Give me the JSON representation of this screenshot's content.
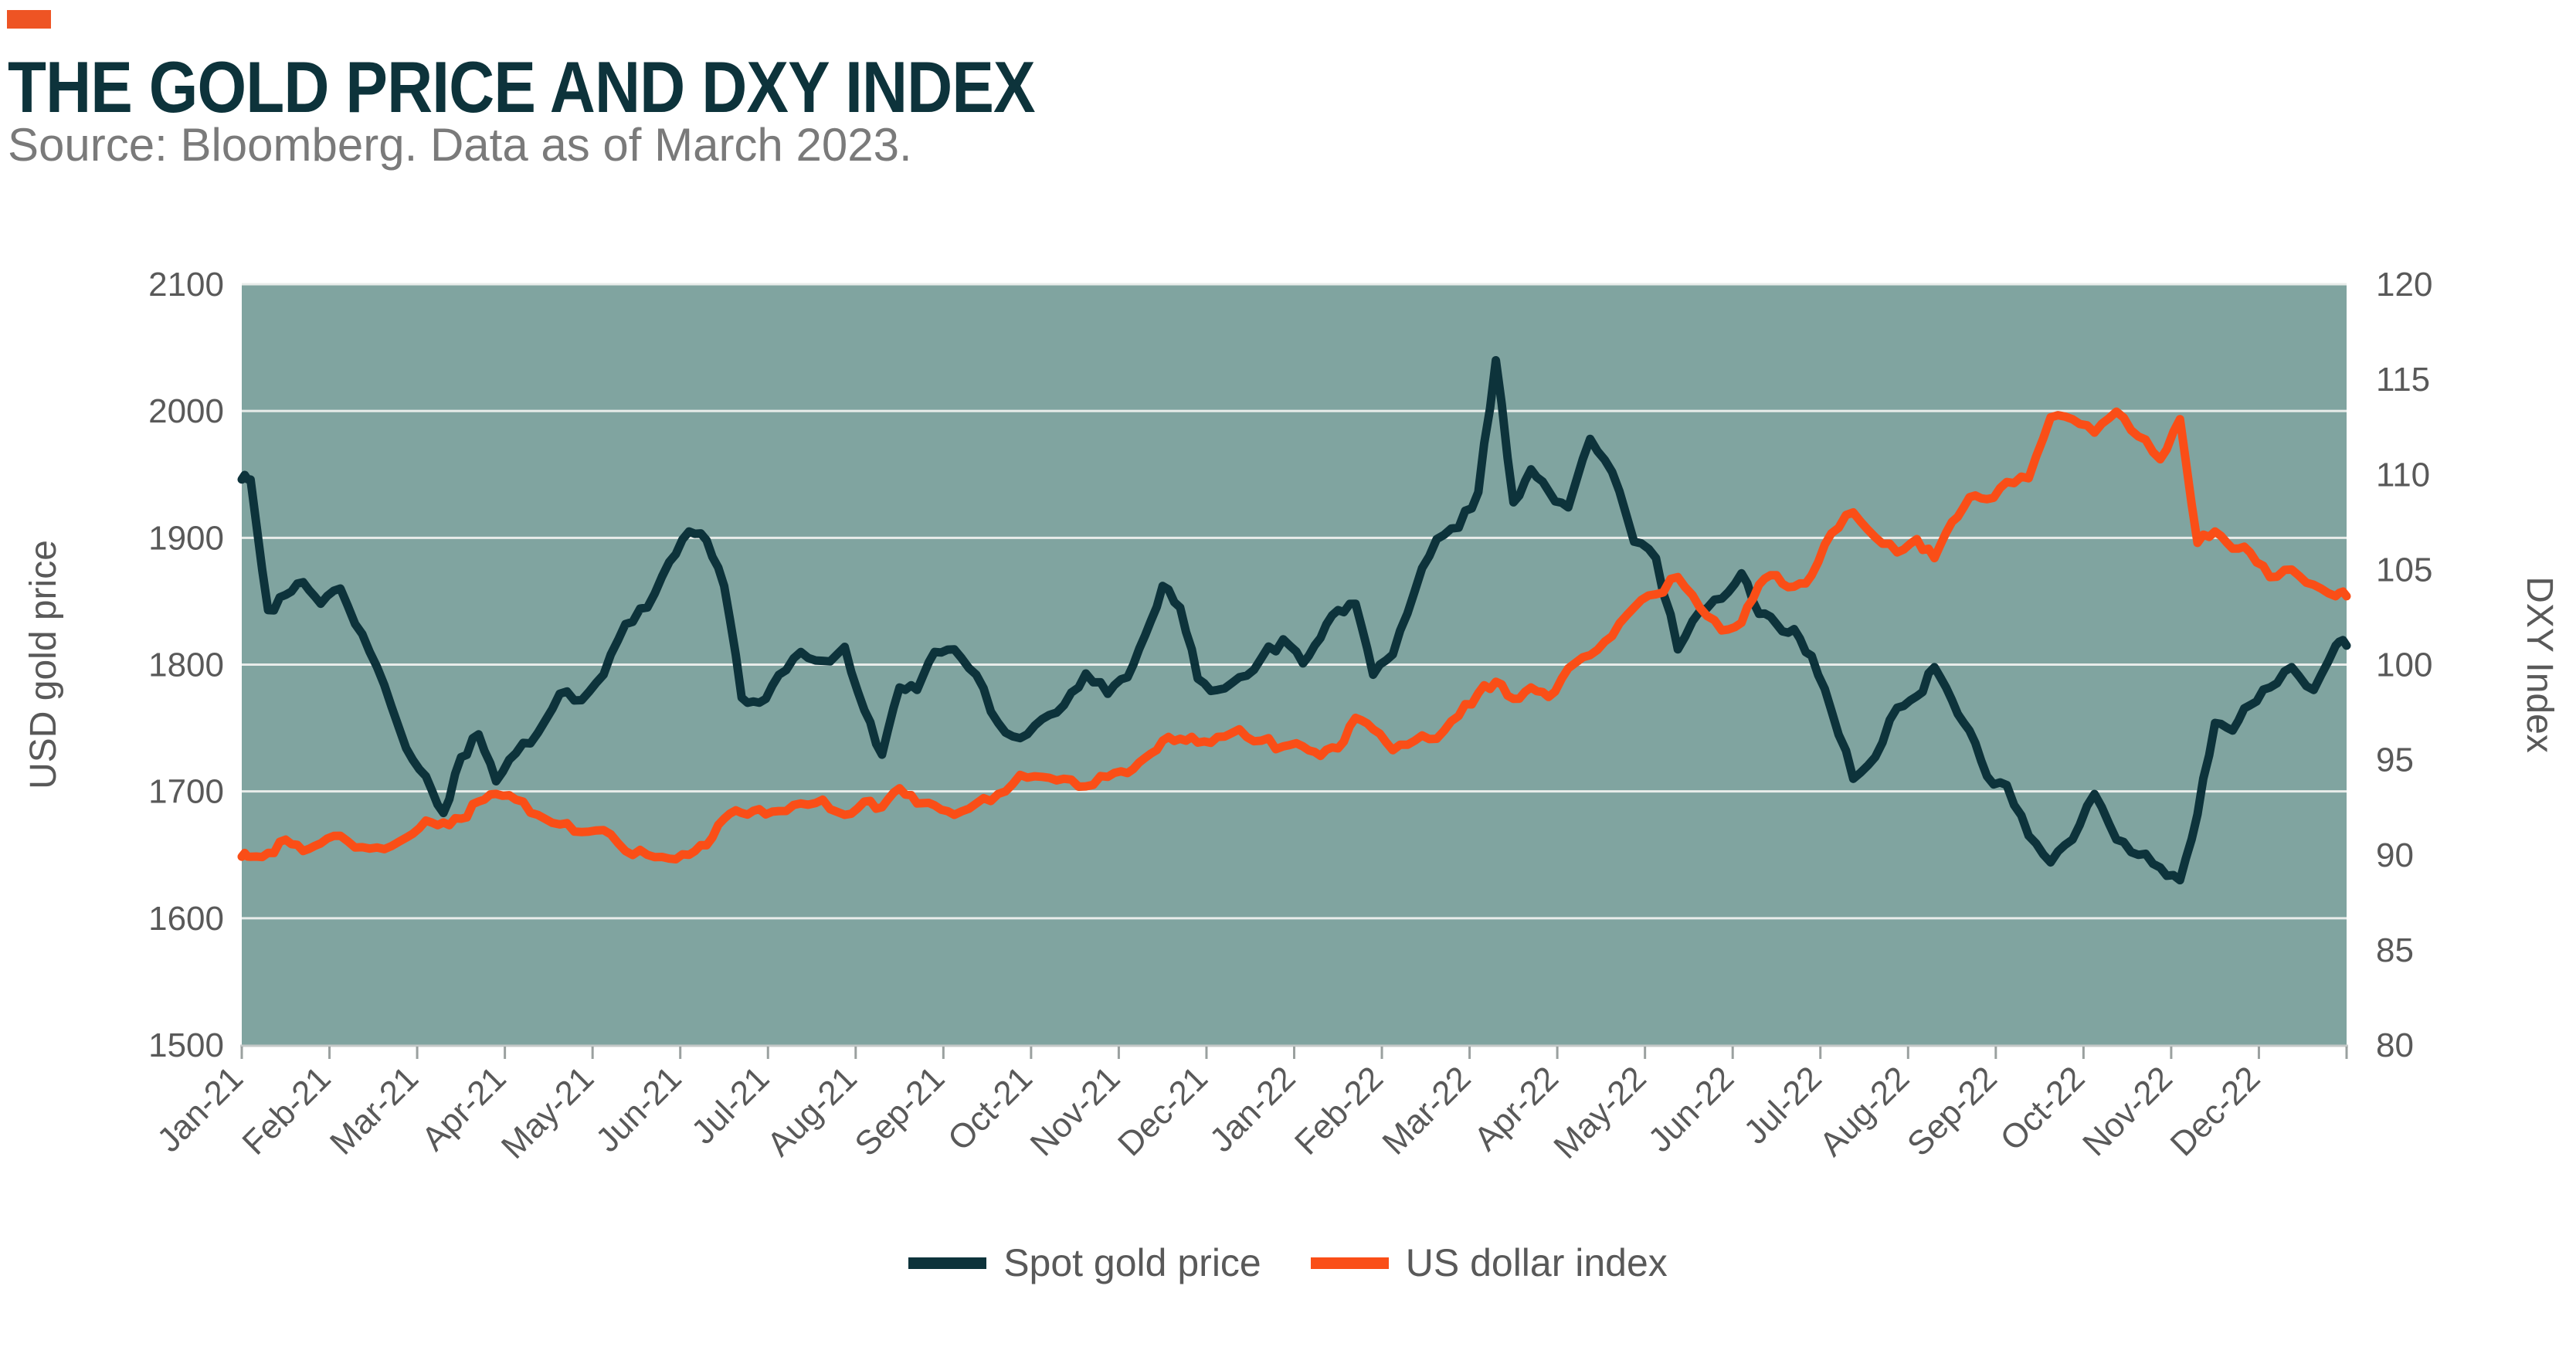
{
  "header": {
    "title": "THE GOLD PRICE AND DXY INDEX",
    "source": "Source: Bloomberg. Data as of March 2023.",
    "accent_color": "#ee5424",
    "title_color": "#0d333b"
  },
  "chart_data": {
    "type": "line",
    "title": "THE GOLD PRICE AND DXY INDEX",
    "source": "Source: Bloomberg. Data as of March 2023.",
    "plot_bg_color": "#80a4a0",
    "gridline_color": "#e8ecea",
    "axis_line_color": "#c4c9c8",
    "tick_mark_color": "#9aa09f",
    "tick_text_color": "#595959",
    "grid": "horizontal-only",
    "legend_position": "bottom-center",
    "x_tick_labels": [
      "Jan-21",
      "Feb-21",
      "Mar-21",
      "Apr-21",
      "May-21",
      "Jun-21",
      "Jul-21",
      "Aug-21",
      "Sep-21",
      "Oct-21",
      "Nov-21",
      "Dec-21",
      "Jan-22",
      "Feb-22",
      "Mar-22",
      "Apr-22",
      "May-22",
      "Jun-22",
      "Jul-22",
      "Aug-22",
      "Sep-22",
      "Oct-22",
      "Nov-22",
      "Dec-22"
    ],
    "left_axis": {
      "title": "USD gold price",
      "min": 1500,
      "max": 2100,
      "step": 100,
      "ticks": [
        2100,
        2000,
        1900,
        1800,
        1700,
        1600,
        1500
      ]
    },
    "right_axis": {
      "title": "DXY Index",
      "min": 80,
      "max": 120,
      "step": 5,
      "ticks": [
        120,
        115,
        110,
        105,
        100,
        95,
        90,
        85,
        80
      ]
    },
    "points_per_month": [
      5,
      4,
      5,
      4,
      4,
      5,
      4,
      5,
      4,
      4,
      5,
      4,
      5,
      4,
      5,
      4,
      4,
      5,
      4,
      5,
      4,
      4,
      5,
      4
    ],
    "series": [
      {
        "name": "Spot gold price",
        "axis": "left",
        "color": "#0d333b",
        "values": [
          1946,
          1843,
          1855,
          1865,
          1848,
          1860,
          1824,
          1784,
          1734,
          1712,
          1683,
          1727,
          1745,
          1708,
          1730,
          1746,
          1777,
          1772,
          1792,
          1832,
          1845,
          1881,
          1905,
          1898,
          1862,
          1774,
          1770,
          1792,
          1810,
          1803,
          1814,
          1764,
          1729,
          1782,
          1780,
          1810,
          1812,
          1792,
          1754,
          1742,
          1757,
          1768,
          1793,
          1777,
          1790,
          1823,
          1862,
          1845,
          1789,
          1780,
          1790,
          1805,
          1820,
          1801,
          1821,
          1843,
          1848,
          1792,
          1808,
          1858,
          1899,
          1908,
          1936,
          2040,
          1928,
          1954,
          1937,
          1924,
          1978,
          1952,
          1897,
          1884,
          1812,
          1842,
          1852,
          1872,
          1840,
          1832,
          1828,
          1807,
          1764,
          1710,
          1727,
          1766,
          1775,
          1798,
          1772,
          1748,
          1712,
          1705,
          1665,
          1644,
          1662,
          1698,
          1662,
          1650,
          1640,
          1630,
          1682,
          1754,
          1748,
          1768,
          1782,
          1798,
          1780,
          1815
        ]
      },
      {
        "name": "US dollar index",
        "axis": "right",
        "color": "#fa4e17",
        "values": [
          89.9,
          90.1,
          90.8,
          90.2,
          90.6,
          91.0,
          90.4,
          90.3,
          90.9,
          91.8,
          91.7,
          91.9,
          92.8,
          93.2,
          92.9,
          92.1,
          91.6,
          91.2,
          91.3,
          90.2,
          90.0,
          89.8,
          90.0,
          90.5,
          91.9,
          92.2,
          92.4,
          92.3,
          92.7,
          92.9,
          92.1,
          92.8,
          92.5,
          93.5,
          92.7,
          92.6,
          92.1,
          92.7,
          93.2,
          94.2,
          94.1,
          94.0,
          93.6,
          94.1,
          94.3,
          95.1,
          96.0,
          96.1,
          95.9,
          96.2,
          96.6,
          96.0,
          95.7,
          95.7,
          95.2,
          95.6,
          97.2,
          96.6,
          95.5,
          96.0,
          96.1,
          97.3,
          98.5,
          99.1,
          98.2,
          98.8,
          98.3,
          99.8,
          100.5,
          101.5,
          103.0,
          103.7,
          104.6,
          103.0,
          101.8,
          102.2,
          104.2,
          104.7,
          104.1,
          104.7,
          106.9,
          108.0,
          106.7,
          105.9,
          106.6,
          105.6,
          107.5,
          108.8,
          108.7,
          109.6,
          109.8,
          113.0,
          112.9,
          112.2,
          113.3,
          112.0,
          110.8,
          112.9,
          106.4,
          107.0,
          106.1,
          105.9,
          104.6,
          105.0,
          104.2,
          103.6
        ]
      }
    ],
    "legend": [
      {
        "label": "Spot gold price",
        "color": "#0d333b"
      },
      {
        "label": "US dollar index",
        "color": "#fa4e17"
      }
    ]
  }
}
